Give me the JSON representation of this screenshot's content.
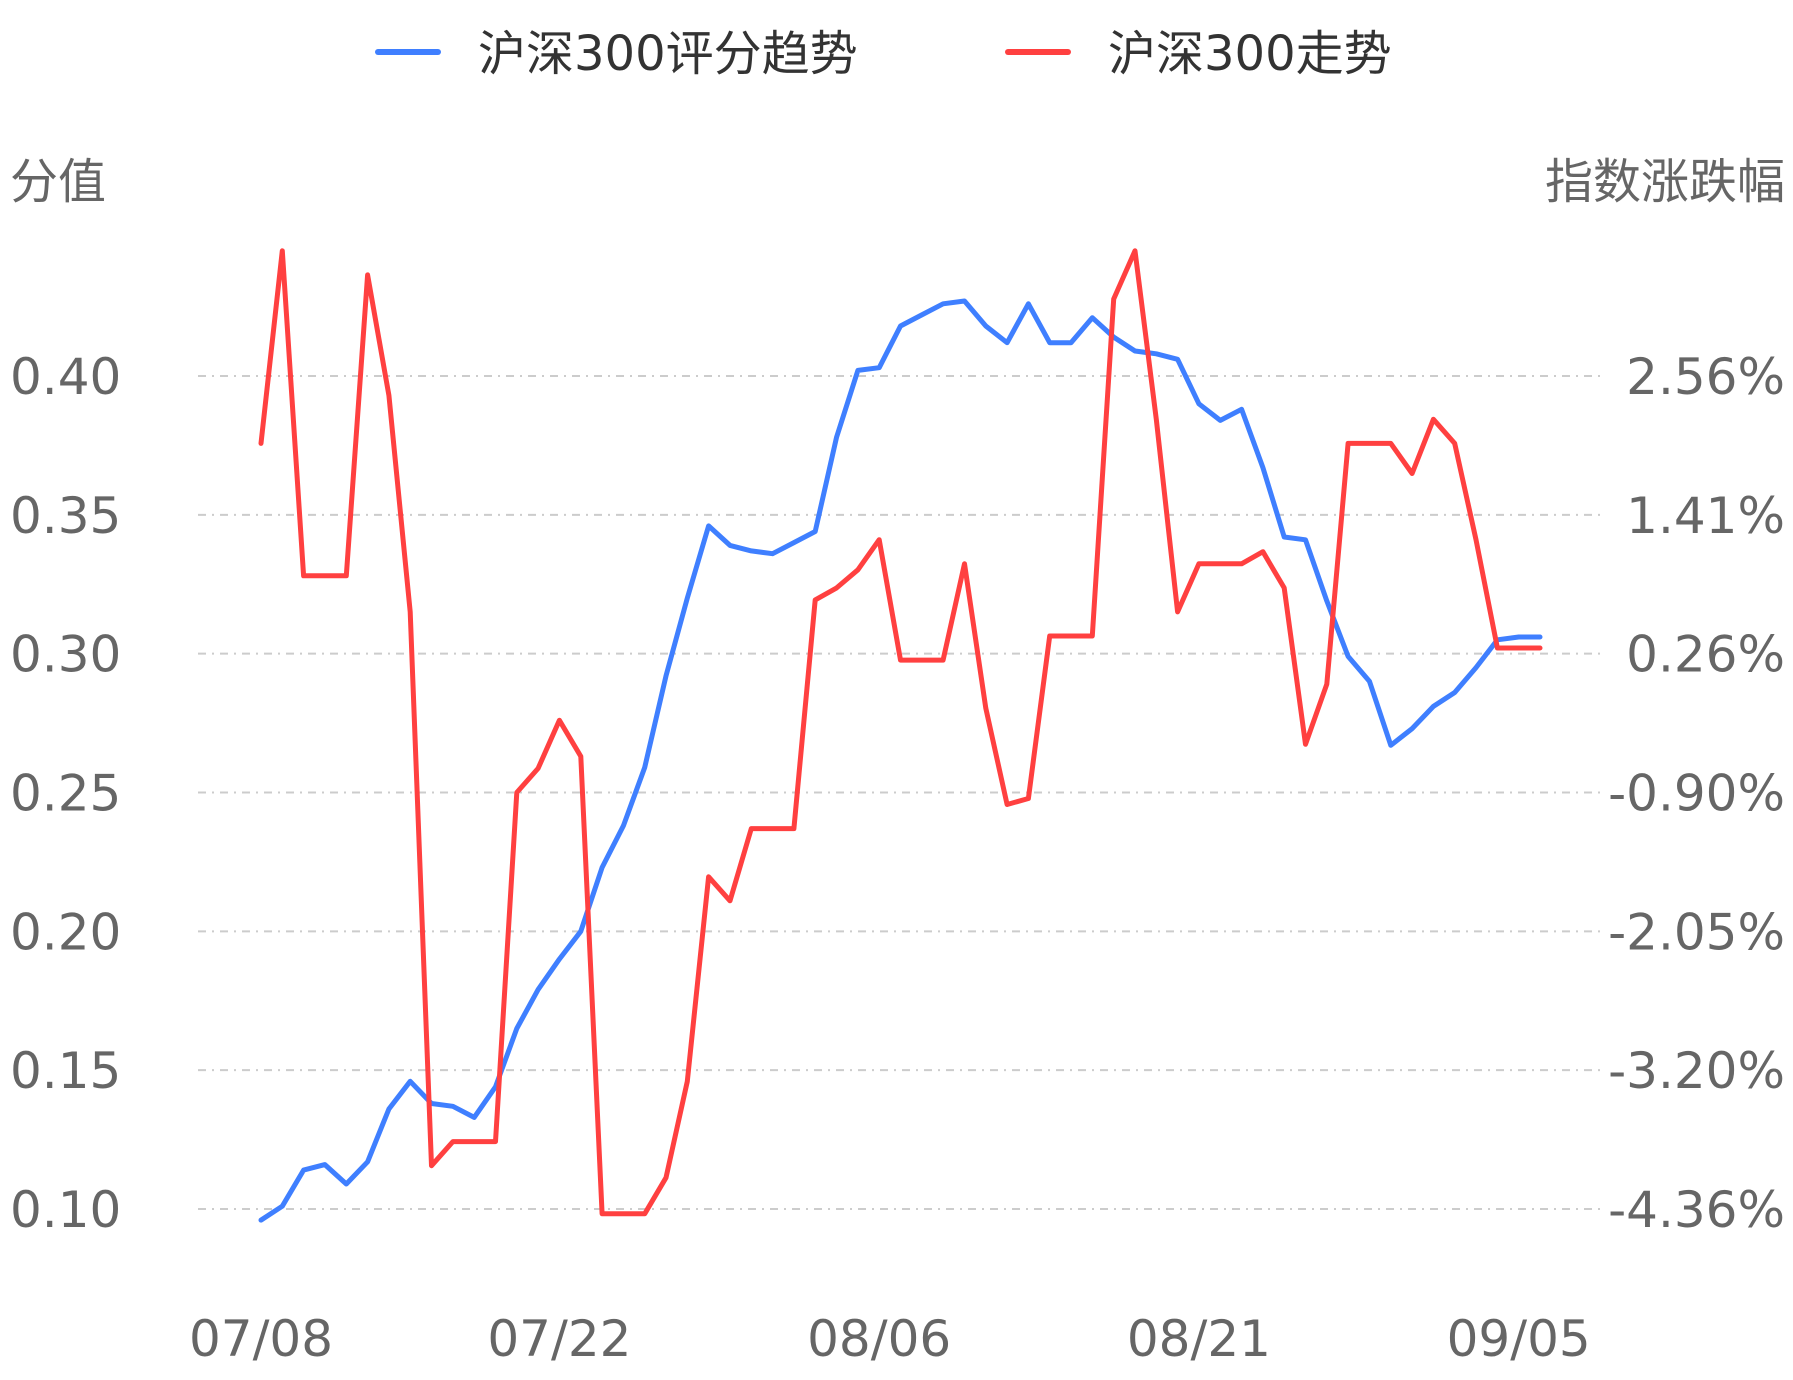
{
  "chart_data": {
    "type": "line",
    "legend": {
      "position": "top-center",
      "items": [
        {
          "name": "沪深300评分趋势",
          "color": "#3F7FFF"
        },
        {
          "name": "沪深300走势",
          "color": "#FF4040"
        }
      ]
    },
    "y_left": {
      "title": "分值",
      "ticks": [
        "0.40",
        "0.35",
        "0.30",
        "0.25",
        "0.20",
        "0.15",
        "0.10"
      ],
      "tick_values": [
        0.4,
        0.35,
        0.3,
        0.25,
        0.2,
        0.15,
        0.1
      ],
      "range": [
        0.1,
        0.4
      ]
    },
    "y_right": {
      "title": "指数涨跌幅",
      "ticks": [
        "2.56%",
        "1.41%",
        "0.26%",
        "-0.90%",
        "-2.05%",
        "-3.20%",
        "-4.36%"
      ],
      "tick_values": [
        2.56,
        1.41,
        0.26,
        -0.9,
        -2.05,
        -3.2,
        -4.36
      ],
      "range": [
        -4.36,
        2.56
      ]
    },
    "x_axis": {
      "tick_labels": [
        "07/08",
        "07/22",
        "08/06",
        "08/21",
        "09/05"
      ],
      "tick_indices": [
        0,
        14,
        29,
        44,
        59
      ]
    },
    "grid": true,
    "series": [
      {
        "name": "沪深300评分趋势",
        "axis": "left",
        "color": "#3F7FFF",
        "values": [
          0.096,
          0.101,
          0.114,
          0.116,
          0.109,
          0.117,
          0.136,
          0.146,
          0.138,
          0.137,
          0.133,
          0.144,
          0.165,
          0.179,
          0.19,
          0.2,
          0.223,
          0.238,
          0.259,
          0.292,
          0.32,
          0.346,
          0.339,
          0.337,
          0.336,
          0.34,
          0.344,
          0.378,
          0.402,
          0.403,
          0.418,
          0.422,
          0.426,
          0.427,
          0.418,
          0.412,
          0.426,
          0.412,
          0.412,
          0.421,
          0.414,
          0.409,
          0.408,
          0.406,
          0.39,
          0.384,
          0.388,
          0.367,
          0.342,
          0.341,
          0.319,
          0.299,
          0.29,
          0.267,
          0.273,
          0.281,
          0.286,
          0.295,
          0.305,
          0.306,
          0.306
        ]
      },
      {
        "name": "沪深300走势",
        "axis": "right",
        "color": "#FF4040",
        "values": [
          2.0,
          3.6,
          0.9,
          0.9,
          0.9,
          3.4,
          2.4,
          0.6,
          -4.0,
          -3.8,
          -3.8,
          -3.8,
          -0.9,
          -0.7,
          -0.3,
          -0.6,
          -4.4,
          -4.4,
          -4.4,
          -4.1,
          -3.3,
          -1.6,
          -1.8,
          -1.2,
          -1.2,
          -1.2,
          0.7,
          0.8,
          0.95,
          1.2,
          0.2,
          0.2,
          0.2,
          1.0,
          -0.2,
          -1.0,
          -0.95,
          0.4,
          0.4,
          0.4,
          3.2,
          3.6,
          2.2,
          0.6,
          1.0,
          1.0,
          1.0,
          1.1,
          0.8,
          -0.5,
          0.0,
          2.0,
          2.0,
          2.0,
          1.75,
          2.2,
          2.0,
          1.2,
          0.3,
          0.3,
          0.3
        ]
      }
    ]
  }
}
